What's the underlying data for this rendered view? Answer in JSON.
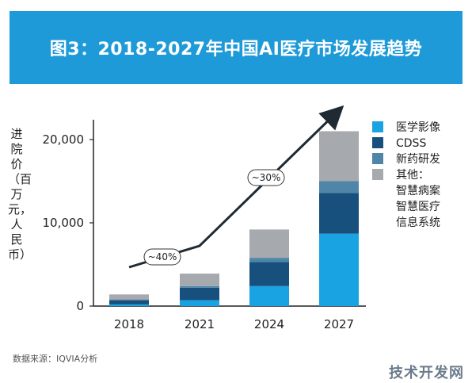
{
  "header": {
    "title": "图3：2018-2027年中国AI医疗市场发展趋势"
  },
  "source": "数据来源：IQVIA分析",
  "watermark": "技术开发网",
  "chart_data": {
    "type": "bar",
    "stacked": true,
    "ylabel": "进院价（百万元，人民币）",
    "categories": [
      "2018",
      "2021",
      "2024",
      "2027"
    ],
    "ylim": [
      0,
      22000
    ],
    "yticks": [
      0,
      10000,
      20000
    ],
    "ytick_labels": [
      "0",
      "10,000",
      "20,000"
    ],
    "series": [
      {
        "name": "医学影像",
        "color": "#1aa3e3",
        "values": [
          200,
          700,
          2400,
          8700
        ]
      },
      {
        "name": "CDSS",
        "color": "#17507d",
        "values": [
          500,
          1500,
          2900,
          4900
        ]
      },
      {
        "name": "新药研发",
        "color": "#4f86a8",
        "values": [
          100,
          200,
          500,
          1400
        ]
      },
      {
        "name": "其他：\n智慧病案\n智慧医疗\n信息系统",
        "color": "#a6a9ad",
        "values": [
          600,
          1500,
          3400,
          6000
        ]
      }
    ],
    "legend": {
      "position": "right",
      "labels": [
        "医学影像",
        "CDSS",
        "新药研发",
        "其他：",
        "智慧病案",
        "智慧医疗",
        "信息系统"
      ]
    },
    "annotations": [
      {
        "text": "~40%",
        "between": [
          "2018",
          "2021"
        ]
      },
      {
        "text": "~30%",
        "between": [
          "2021",
          "2027"
        ]
      }
    ],
    "grid": false
  }
}
